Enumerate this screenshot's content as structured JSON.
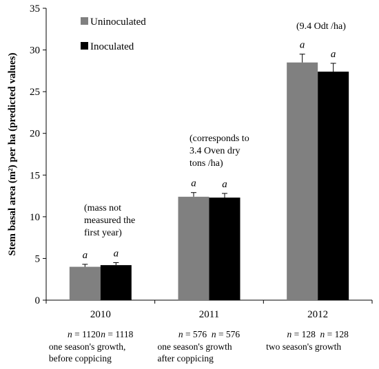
{
  "chart_data": {
    "type": "bar",
    "title": "",
    "xlabel": "",
    "ylabel": "Stem basal area (m²) per ha (predicted values)",
    "ylim": [
      0,
      35
    ],
    "yticks": [
      0,
      5,
      10,
      15,
      20,
      25,
      30,
      35
    ],
    "grid": false,
    "legend_position": "top-left",
    "categories": [
      "2010",
      "2011",
      "2012"
    ],
    "series": [
      {
        "name": "Uninoculated",
        "color": "#808080",
        "values": [
          4.0,
          12.4,
          28.5
        ],
        "error": [
          0.3,
          0.5,
          1.0
        ],
        "significance": [
          "a",
          "a",
          "a"
        ],
        "n_labels": [
          "n = 1120",
          "n = 576",
          "n = 128"
        ]
      },
      {
        "name": "Inoculated",
        "color": "#000000",
        "values": [
          4.2,
          12.3,
          27.4
        ],
        "error": [
          0.3,
          0.5,
          1.0
        ],
        "significance": [
          "a",
          "a",
          "a"
        ],
        "n_labels": [
          "n = 1118",
          "n = 576",
          "n = 128"
        ]
      }
    ],
    "annotations": [
      [
        "(mass not",
        "measured the",
        "first year)"
      ],
      [
        "(corresponds to",
        "3.4 Oven dry",
        "tons /ha)"
      ],
      [
        "(9.4 Odt /ha)"
      ]
    ],
    "category_notes": [
      [
        "one season's growth,",
        "before coppicing"
      ],
      [
        "one season's growth",
        "after coppicing"
      ],
      [
        "two season's growth"
      ]
    ]
  }
}
